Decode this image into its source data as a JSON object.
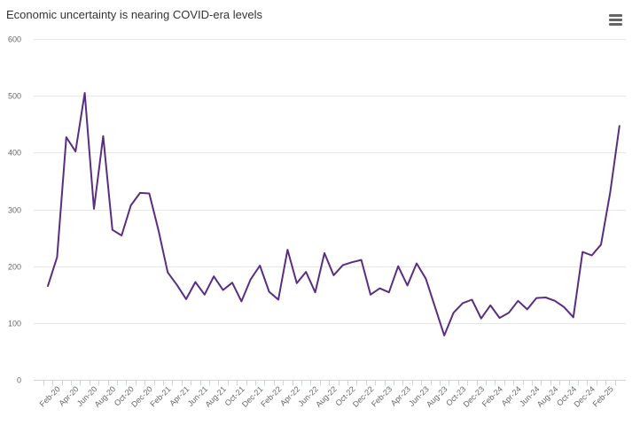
{
  "chart_data": {
    "type": "line",
    "title": "Economic uncertainty is nearing COVID-era levels",
    "xlabel": "",
    "ylabel": "",
    "ylim": [
      0,
      600
    ],
    "yticks": [
      0,
      100,
      200,
      300,
      400,
      500,
      600
    ],
    "grid": true,
    "legend": "none",
    "x_tick_labels": [
      "Feb-20",
      "Apr-20",
      "Jun-20",
      "Aug-20",
      "Oct-20",
      "Dec-20",
      "Feb-21",
      "Apr-21",
      "Jun-21",
      "Aug-21",
      "Oct-21",
      "Dec-21",
      "Feb-22",
      "Apr-22",
      "Jun-22",
      "Aug-22",
      "Oct-22",
      "Dec-22",
      "Feb-23",
      "Apr-23",
      "Jun-23",
      "Aug-23",
      "Oct-23",
      "Dec-23",
      "Feb-24",
      "Apr-24",
      "Jun-24",
      "Aug-24",
      "Oct-24",
      "Dec-24",
      "Feb-25"
    ],
    "x": [
      "Jan-20",
      "Feb-20",
      "Mar-20",
      "Apr-20",
      "May-20",
      "Jun-20",
      "Jul-20",
      "Aug-20",
      "Sep-20",
      "Oct-20",
      "Nov-20",
      "Dec-20",
      "Jan-21",
      "Feb-21",
      "Mar-21",
      "Apr-21",
      "May-21",
      "Jun-21",
      "Jul-21",
      "Aug-21",
      "Sep-21",
      "Oct-21",
      "Nov-21",
      "Dec-21",
      "Jan-22",
      "Feb-22",
      "Mar-22",
      "Apr-22",
      "May-22",
      "Jun-22",
      "Jul-22",
      "Aug-22",
      "Sep-22",
      "Oct-22",
      "Nov-22",
      "Dec-22",
      "Jan-23",
      "Feb-23",
      "Mar-23",
      "Apr-23",
      "May-23",
      "Jun-23",
      "Jul-23",
      "Aug-23",
      "Sep-23",
      "Oct-23",
      "Nov-23",
      "Dec-23",
      "Jan-24",
      "Feb-24",
      "Mar-24",
      "Apr-24",
      "May-24",
      "Jun-24",
      "Jul-24",
      "Aug-24",
      "Sep-24",
      "Oct-24",
      "Nov-24",
      "Dec-24",
      "Jan-25",
      "Feb-25",
      "Mar-25"
    ],
    "series": [
      {
        "color": "#5b2d82",
        "values": [
          165,
          216,
          427,
          402,
          505,
          301,
          429,
          264,
          254,
          307,
          329,
          328,
          263,
          189,
          167,
          142,
          172,
          150,
          182,
          158,
          171,
          138,
          177,
          201,
          155,
          141,
          229,
          170,
          190,
          154,
          223,
          184,
          202,
          207,
          211,
          150,
          161,
          154,
          200,
          166,
          205,
          178,
          128,
          78,
          118,
          135,
          141,
          108,
          131,
          109,
          118,
          139,
          124,
          144,
          145,
          139,
          128,
          110,
          225,
          219,
          238,
          330,
          447
        ]
      }
    ]
  },
  "ui": {
    "menu_icon": "hamburger-menu-icon"
  }
}
